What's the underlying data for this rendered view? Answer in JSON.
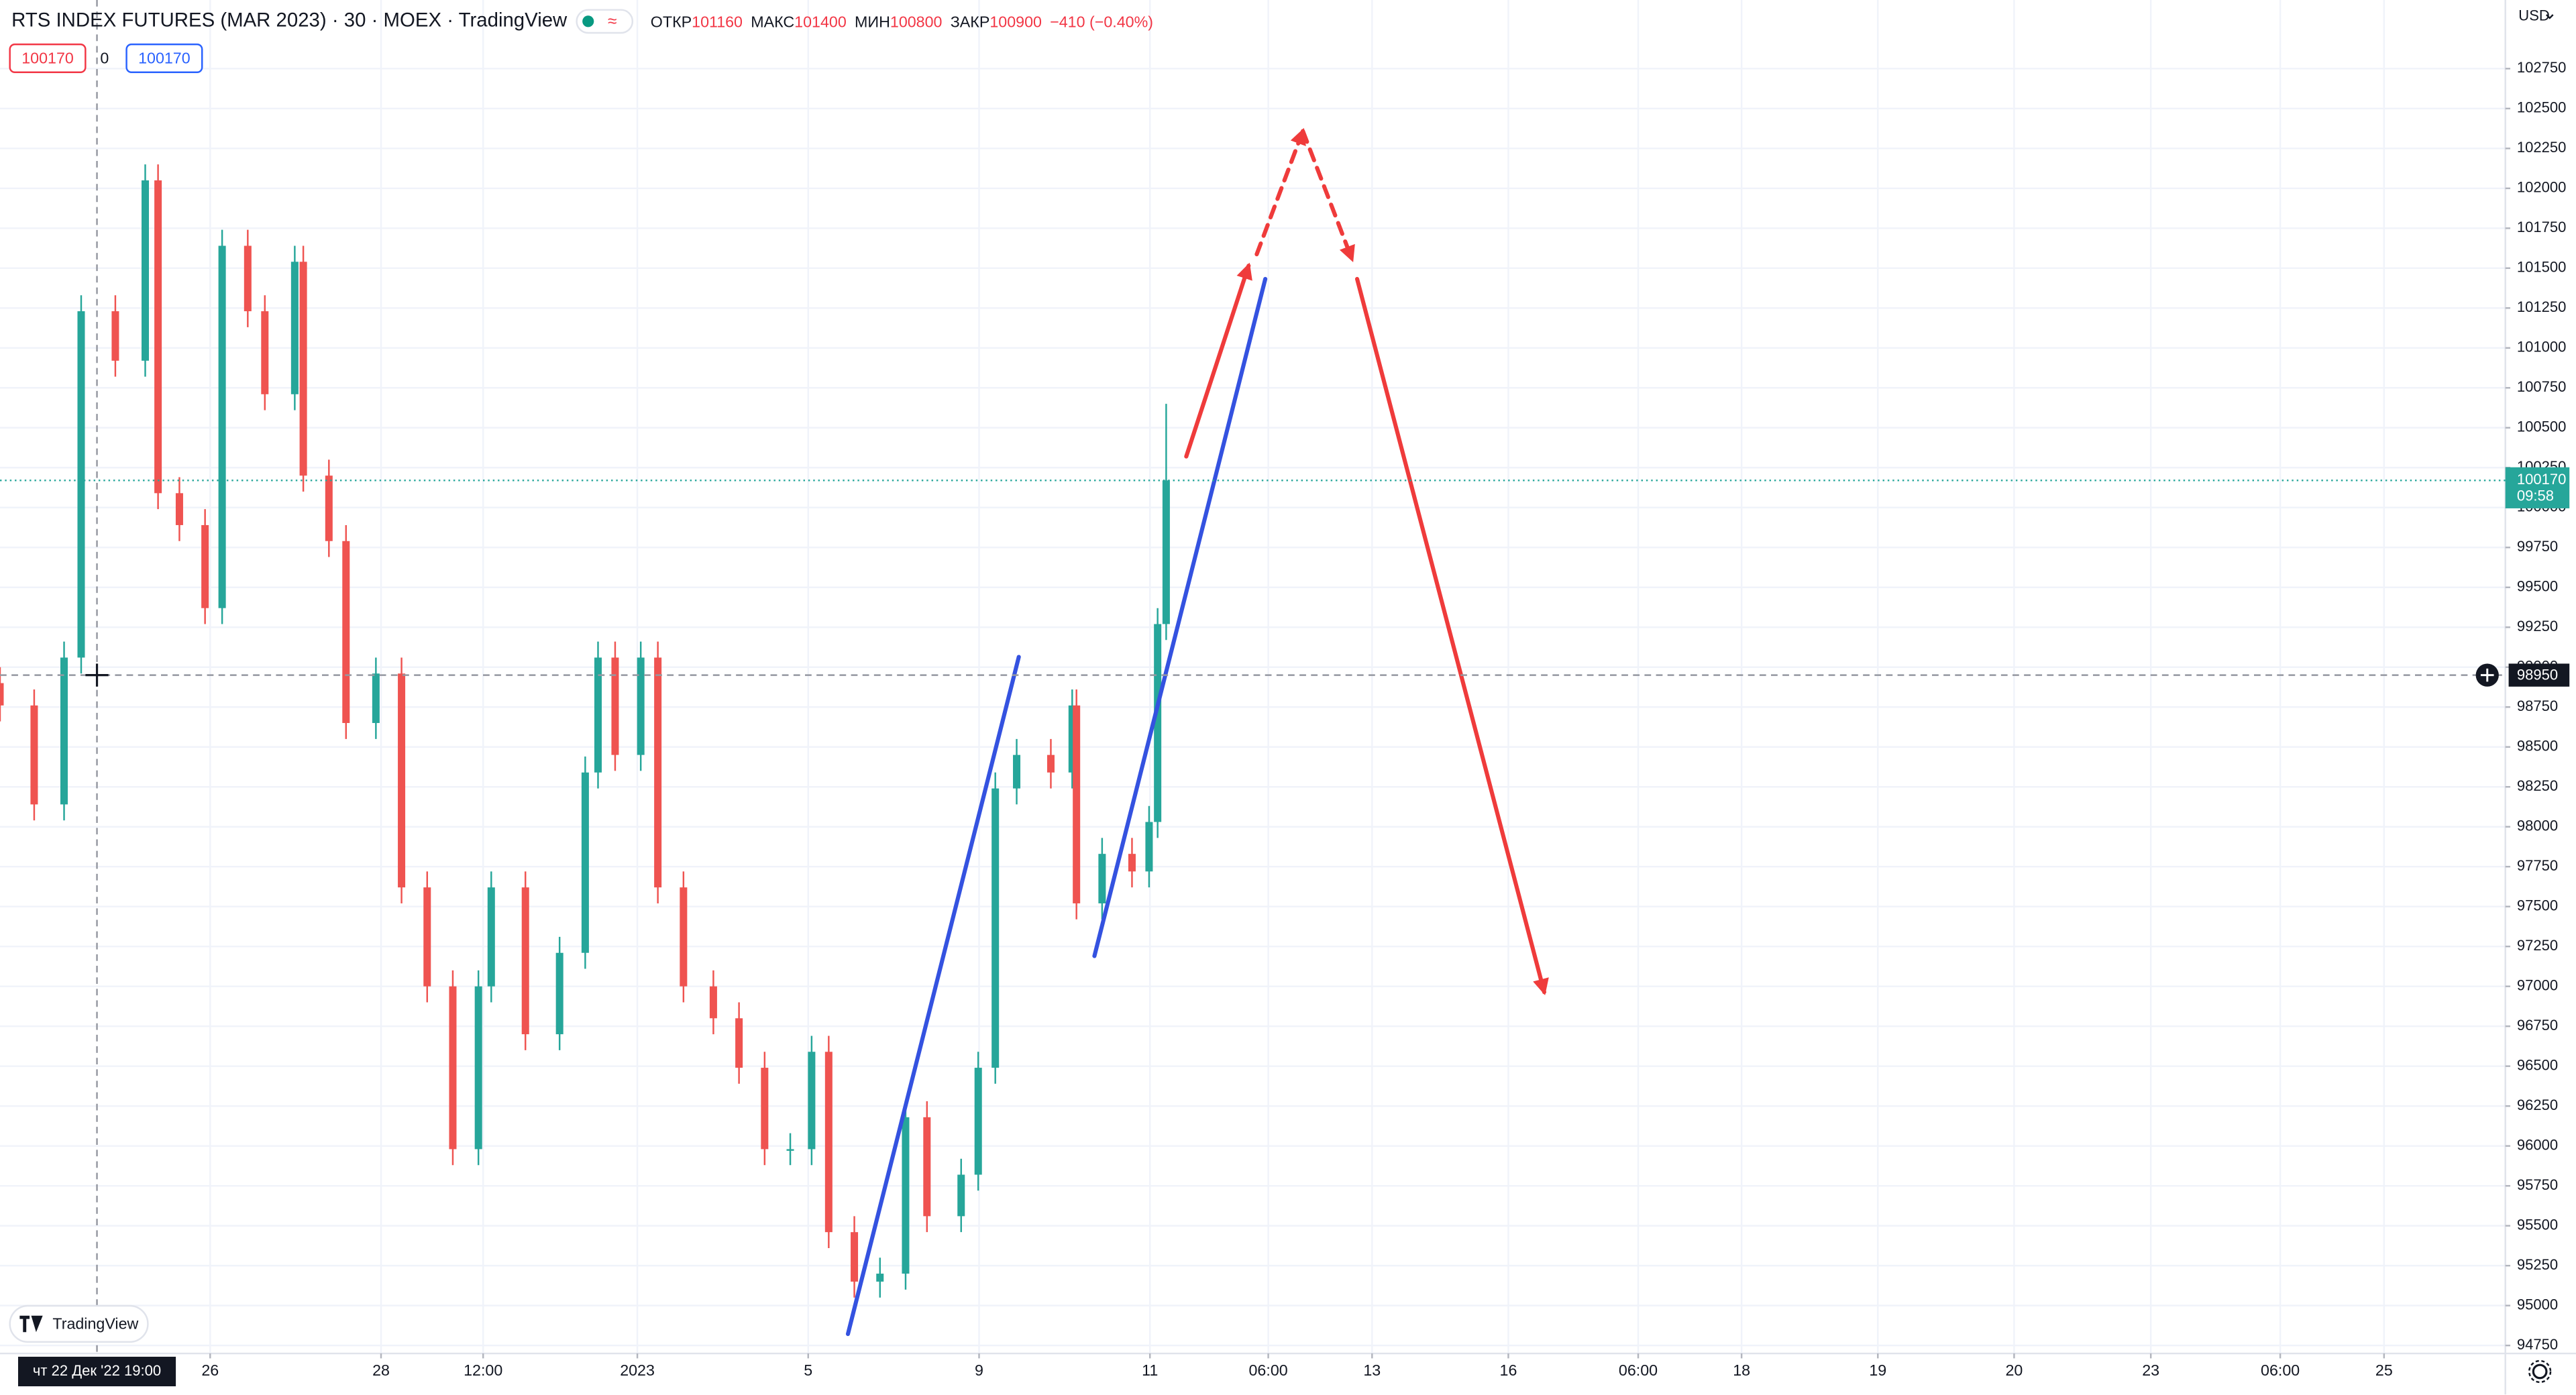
{
  "chart_data": {
    "type": "candlestick",
    "title": "RTS INDEX FUTURES (MAR 2023) · 30 · MOEX · TradingView",
    "stats": [
      {
        "label": "ОТКР",
        "value": 101160
      },
      {
        "label": "МАКС",
        "value": 101400
      },
      {
        "label": "МИН",
        "value": 100800
      },
      {
        "label": "ЗАКР",
        "value": 100900
      }
    ],
    "change": "−410 (−0.40%)",
    "indicator_values": [
      100170,
      0,
      100170
    ],
    "currency": "USD",
    "logo": "TradingView",
    "up_color": "#26a69a",
    "down_color": "#ef5350",
    "x": [
      0,
      8,
      15,
      19,
      27,
      34,
      37,
      42,
      48,
      52,
      58,
      62,
      69,
      71,
      77,
      81,
      88,
      94,
      100,
      106,
      112,
      115,
      123,
      131,
      137,
      140,
      144,
      150,
      154,
      160,
      167,
      173,
      179,
      185,
      190,
      194,
      200,
      206,
      212,
      217,
      225,
      229,
      233,
      238,
      246,
      251,
      252,
      258,
      265,
      269,
      271,
      273
    ],
    "open": [
      98900,
      98760,
      98140,
      99060,
      101230,
      100920,
      102050,
      100090,
      99890,
      99370,
      101640,
      101230,
      100710,
      101540,
      100200,
      99790,
      98650,
      98960,
      97620,
      97000,
      95980,
      97000,
      97620,
      96700,
      97210,
      98340,
      99060,
      98450,
      99060,
      97620,
      97000,
      96800,
      96490,
      95980,
      95980,
      96590,
      95460,
      95150,
      95200,
      96180,
      95560,
      95820,
      96490,
      98240,
      98450,
      98340,
      98760,
      97520,
      97830,
      97720,
      98030,
      99270
    ],
    "high": [
      99000,
      98860,
      99160,
      101330,
      101330,
      102150,
      102150,
      100190,
      99990,
      101740,
      101740,
      101330,
      101640,
      101640,
      100300,
      99890,
      99060,
      99060,
      97720,
      97100,
      97100,
      97720,
      97720,
      97310,
      98440,
      99160,
      99160,
      99160,
      99160,
      97720,
      97100,
      96900,
      96590,
      96080,
      96690,
      96690,
      95560,
      95300,
      96280,
      96280,
      95920,
      96590,
      98340,
      98550,
      98550,
      98860,
      98860,
      97930,
      97930,
      98130,
      99370,
      100650
    ],
    "low": [
      98660,
      98040,
      98040,
      98960,
      100820,
      100820,
      99990,
      99790,
      99270,
      99270,
      101130,
      100610,
      100610,
      100100,
      99690,
      98550,
      98550,
      97520,
      96900,
      95880,
      95880,
      96900,
      96600,
      96600,
      97110,
      98240,
      98350,
      98350,
      97520,
      96900,
      96700,
      96390,
      95880,
      95880,
      95880,
      95360,
      95050,
      95050,
      95100,
      95460,
      95460,
      95720,
      96390,
      98140,
      98240,
      98240,
      97420,
      97420,
      97620,
      97620,
      97930,
      99170
    ],
    "close": [
      98760,
      98140,
      99060,
      101230,
      100920,
      102050,
      100090,
      99890,
      99370,
      101640,
      101230,
      100710,
      101540,
      100200,
      99790,
      98650,
      98960,
      97620,
      97000,
      95980,
      97000,
      97620,
      96700,
      97210,
      98340,
      99060,
      98450,
      99060,
      97620,
      97000,
      96800,
      96490,
      95980,
      95980,
      96590,
      95460,
      95150,
      95200,
      96180,
      95560,
      95820,
      96490,
      98240,
      98450,
      98340,
      98760,
      97520,
      97830,
      97720,
      98030,
      99270,
      100170
    ],
    "xlim": [
      0,
      586.5
    ],
    "ylim": [
      94700,
      103180
    ],
    "yticks": [
      94750,
      95000,
      95250,
      95500,
      95750,
      96000,
      96250,
      96500,
      96750,
      97000,
      97250,
      97500,
      97750,
      98000,
      98250,
      98500,
      98750,
      99000,
      99250,
      99500,
      99750,
      100000,
      100250,
      100500,
      100750,
      101000,
      101250,
      101500,
      101750,
      102000,
      102250,
      102500,
      102750
    ],
    "xticks": [
      {
        "value": 49.2,
        "label": "26"
      },
      {
        "value": 89.2,
        "label": "28"
      },
      {
        "value": 113.1,
        "label": "12:00"
      },
      {
        "value": 149.2,
        "label": "2023"
      },
      {
        "value": 189.2,
        "label": "5"
      },
      {
        "value": 229.2,
        "label": "9"
      },
      {
        "value": 269.2,
        "label": "11"
      },
      {
        "value": 296.9,
        "label": "06:00"
      },
      {
        "value": 321.2,
        "label": "13"
      },
      {
        "value": 353.1,
        "label": "16"
      },
      {
        "value": 383.5,
        "label": "06:00"
      },
      {
        "value": 407.7,
        "label": "18"
      },
      {
        "value": 439.6,
        "label": "19"
      },
      {
        "value": 471.5,
        "label": "20"
      },
      {
        "value": 503.5,
        "label": "23"
      },
      {
        "value": 533.8,
        "label": "06:00"
      },
      {
        "value": 558.1,
        "label": "25"
      }
    ],
    "grid": true,
    "last_price": 100170,
    "last_price_color": "#26a69a",
    "countdown": "09:58",
    "crosshair": {
      "x": 22.7,
      "price": 98950,
      "time_label": "чт 22 Дек '22  19:00"
    },
    "drawings": [
      {
        "color": "#3452e0",
        "dashed": false,
        "arrow": false,
        "x": [
          198.5,
          238.5
        ],
        "y": [
          94822,
          99064
        ]
      },
      {
        "color": "#3452e0",
        "dashed": false,
        "arrow": false,
        "x": [
          256.2,
          296.2
        ],
        "y": [
          97190,
          101432
        ]
      },
      {
        "color": "#ef3b3b",
        "dashed": false,
        "arrow": true,
        "x": [
          277.7,
          292.3
        ],
        "y": [
          100320,
          101515
        ]
      },
      {
        "color": "#ef3b3b",
        "dashed": true,
        "arrow": true,
        "x": [
          294.2,
          305.0
        ],
        "y": [
          101587,
          102359
        ]
      },
      {
        "color": "#ef3b3b",
        "dashed": true,
        "arrow": true,
        "x": [
          305.0,
          316.5
        ],
        "y": [
          102359,
          101556
        ]
      },
      {
        "color": "#ef3b3b",
        "dashed": false,
        "arrow": true,
        "x": [
          317.7,
          361.5
        ],
        "y": [
          101432,
          96964
        ]
      }
    ]
  }
}
